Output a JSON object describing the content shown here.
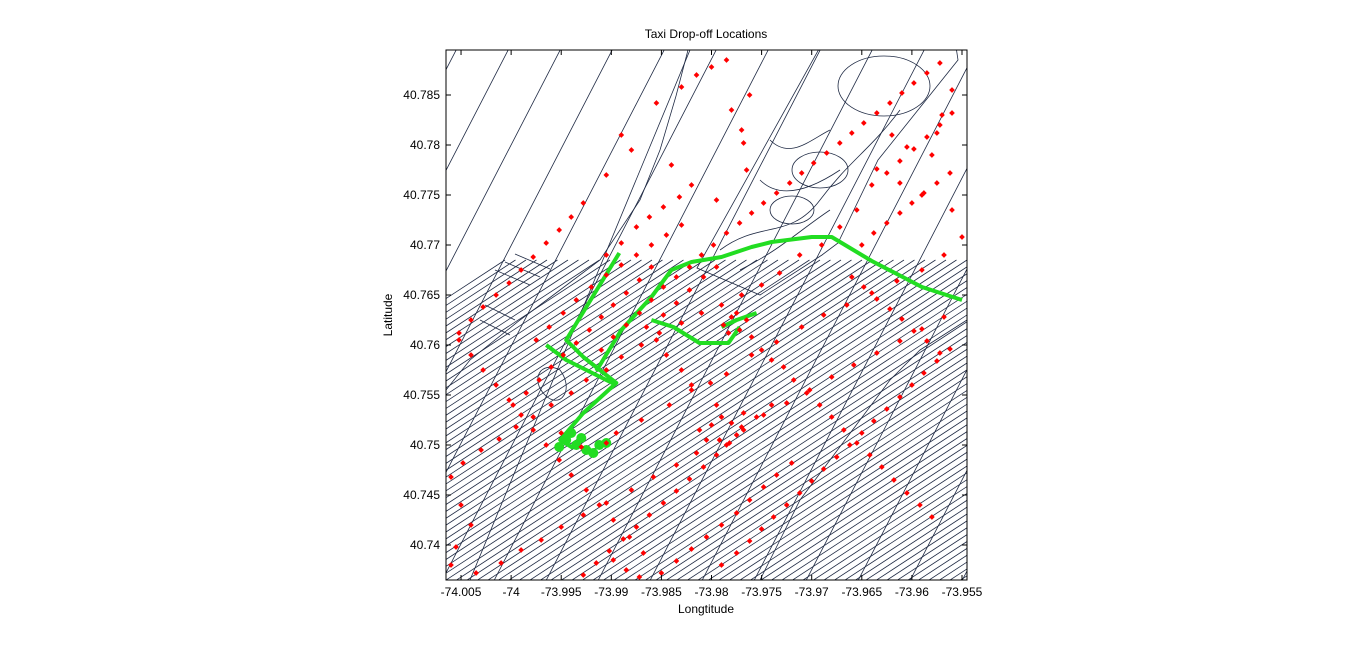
{
  "chart_data": {
    "type": "scatter",
    "title": "Taxi Drop-off Locations",
    "xlabel": "Longtitude",
    "ylabel": "Latitude",
    "xlim": [
      -74.0065,
      -73.9545
    ],
    "ylim": [
      40.7365,
      40.7895
    ],
    "xticks": [
      -74.005,
      -74,
      -73.995,
      -73.99,
      -73.985,
      -73.98,
      -73.975,
      -73.97,
      -73.965,
      -73.96,
      -73.955
    ],
    "xtick_labels": [
      "-74.005",
      "-74",
      "-73.995",
      "-73.99",
      "-73.985",
      "-73.98",
      "-73.975",
      "-73.97",
      "-73.965",
      "-73.96",
      "-73.955"
    ],
    "yticks": [
      40.74,
      40.745,
      40.75,
      40.755,
      40.76,
      40.765,
      40.77,
      40.775,
      40.78,
      40.785
    ],
    "ytick_labels": [
      "40.74",
      "40.745",
      "40.75",
      "40.755",
      "40.76",
      "40.765",
      "40.77",
      "40.775",
      "40.78",
      "40.785"
    ],
    "grid": false,
    "colors": {
      "streets": "#1f2a44",
      "points": "#ff0000",
      "route": "#22dd22"
    },
    "route_series": [
      [
        [
          -73.9892,
          40.7692
        ],
        [
          -73.9945,
          40.7605
        ],
        [
          -73.9928,
          40.7588
        ],
        [
          -73.9895,
          40.7562
        ],
        [
          -73.9928,
          40.7532
        ],
        [
          -73.9951,
          40.7505
        ],
        [
          -73.9938,
          40.7497
        ]
      ],
      [
        [
          -73.9965,
          40.76
        ],
        [
          -73.9945,
          40.7585
        ],
        [
          -73.9915,
          40.757
        ],
        [
          -73.9895,
          40.756
        ]
      ],
      [
        [
          -73.9915,
          40.7574
        ],
        [
          -73.989,
          40.7615
        ],
        [
          -73.986,
          40.7648
        ],
        [
          -73.984,
          40.7675
        ],
        [
          -73.982,
          40.7683
        ],
        [
          -73.979,
          40.7688
        ],
        [
          -73.976,
          40.7698
        ],
        [
          -73.974,
          40.7703
        ],
        [
          -73.97,
          40.7708
        ],
        [
          -73.968,
          40.7708
        ],
        [
          -73.964,
          40.7684
        ],
        [
          -73.959,
          40.7658
        ],
        [
          -73.955,
          40.7645
        ]
      ],
      [
        [
          -73.986,
          40.7625
        ],
        [
          -73.9838,
          40.7618
        ],
        [
          -73.9812,
          40.7602
        ],
        [
          -73.9783,
          40.7602
        ],
        [
          -73.9772,
          40.7618
        ]
      ],
      [
        [
          -73.9755,
          40.7632
        ],
        [
          -73.9775,
          40.7625
        ],
        [
          -73.979,
          40.7618
        ]
      ]
    ],
    "route_clusters": [
      [
        -73.9945,
        40.7505
      ],
      [
        -73.9935,
        40.75
      ],
      [
        -73.9952,
        40.7498
      ],
      [
        -73.9925,
        40.7495
      ],
      [
        -73.9912,
        40.75
      ],
      [
        -73.9905,
        40.7502
      ],
      [
        -73.9918,
        40.7492
      ],
      [
        -73.993,
        40.7507
      ],
      [
        -73.994,
        40.7512
      ]
    ],
    "dropoffs": [
      [
        -73.995,
        40.7512
      ],
      [
        -73.993,
        40.7498
      ],
      [
        -73.9905,
        40.7502
      ],
      [
        -73.9895,
        40.7512
      ],
      [
        -73.987,
        40.7525
      ],
      [
        -73.9842,
        40.754
      ],
      [
        -73.982,
        40.7555
      ],
      [
        -73.9801,
        40.7562
      ],
      [
        -73.9785,
        40.7571
      ],
      [
        -73.976,
        40.759
      ],
      [
        -73.9735,
        40.7603
      ],
      [
        -73.971,
        40.7618
      ],
      [
        -73.9688,
        40.763
      ],
      [
        -73.9665,
        40.764
      ],
      [
        -73.964,
        40.7652
      ],
      [
        -73.9615,
        40.7664
      ],
      [
        -73.959,
        40.7675
      ],
      [
        -73.9568,
        40.769
      ],
      [
        -73.955,
        40.7708
      ],
      [
        -73.956,
        40.7735
      ],
      [
        -73.959,
        40.775
      ],
      [
        -73.9612,
        40.7762
      ],
      [
        -73.9635,
        40.7776
      ],
      [
        -73.958,
        40.779
      ],
      [
        -73.9575,
        40.7812
      ],
      [
        -73.957,
        40.783
      ],
      [
        -73.956,
        40.7855
      ],
      [
        -73.962,
        40.781
      ],
      [
        -73.9605,
        40.7798
      ],
      [
        -73.9655,
        40.7735
      ],
      [
        -73.9672,
        40.7718
      ],
      [
        -73.969,
        40.77
      ],
      [
        -73.9712,
        40.769
      ],
      [
        -73.9732,
        40.7672
      ],
      [
        -73.975,
        40.766
      ],
      [
        -73.977,
        40.765
      ],
      [
        -73.979,
        40.764
      ],
      [
        -73.981,
        40.7632
      ],
      [
        -73.983,
        40.7622
      ],
      [
        -73.9852,
        40.7612
      ],
      [
        -73.987,
        40.76
      ],
      [
        -73.989,
        40.7588
      ],
      [
        -73.9905,
        40.7575
      ],
      [
        -73.9925,
        40.7565
      ],
      [
        -73.994,
        40.7552
      ],
      [
        -73.996,
        40.754
      ],
      [
        -73.9978,
        40.7528
      ],
      [
        -73.9995,
        40.7518
      ],
      [
        -74.0012,
        40.7506
      ],
      [
        -74.003,
        40.7495
      ],
      [
        -74.0048,
        40.7482
      ],
      [
        -74.006,
        40.7468
      ],
      [
        -74.005,
        40.744
      ],
      [
        -74.004,
        40.742
      ],
      [
        -74.0055,
        40.7398
      ],
      [
        -74.006,
        40.738
      ],
      [
        -74.0035,
        40.7372
      ],
      [
        -74.001,
        40.7382
      ],
      [
        -73.999,
        40.7395
      ],
      [
        -73.997,
        40.7405
      ],
      [
        -73.995,
        40.7418
      ],
      [
        -73.9928,
        40.743
      ],
      [
        -73.9905,
        40.7442
      ],
      [
        -73.988,
        40.7455
      ],
      [
        -73.9858,
        40.7468
      ],
      [
        -73.9835,
        40.748
      ],
      [
        -73.9815,
        40.7492
      ],
      [
        -73.9792,
        40.7505
      ],
      [
        -73.977,
        40.7518
      ],
      [
        -73.9748,
        40.753
      ],
      [
        -73.9725,
        40.7542
      ],
      [
        -73.9702,
        40.7555
      ],
      [
        -73.968,
        40.7568
      ],
      [
        -73.9658,
        40.758
      ],
      [
        -73.9635,
        40.7592
      ],
      [
        -73.9612,
        40.7604
      ],
      [
        -73.959,
        40.7616
      ],
      [
        -73.9568,
        40.7628
      ],
      [
        -73.98,
        40.752
      ],
      [
        -73.979,
        40.7528
      ],
      [
        -73.978,
        40.7522
      ],
      [
        -73.9812,
        40.7515
      ],
      [
        -73.9775,
        40.751
      ],
      [
        -73.9768,
        40.7532
      ],
      [
        -73.9795,
        40.754
      ],
      [
        -73.9805,
        40.7505
      ],
      [
        -73.9785,
        40.75
      ],
      [
        -73.982,
        40.756
      ],
      [
        -73.983,
        40.7575
      ],
      [
        -73.9845,
        40.759
      ],
      [
        -73.9855,
        40.7605
      ],
      [
        -73.9865,
        40.7618
      ],
      [
        -73.9848,
        40.763
      ],
      [
        -73.9835,
        40.7642
      ],
      [
        -73.9822,
        40.7655
      ],
      [
        -73.9808,
        40.7668
      ],
      [
        -73.9795,
        40.7678
      ],
      [
        -73.9788,
        40.762
      ],
      [
        -73.978,
        40.7628
      ],
      [
        -73.9772,
        40.7615
      ],
      [
        -73.9765,
        40.7625
      ],
      [
        -73.9775,
        40.7632
      ],
      [
        -73.9783,
        40.7612
      ],
      [
        -73.976,
        40.7608
      ],
      [
        -73.975,
        40.7595
      ],
      [
        -73.974,
        40.7585
      ],
      [
        -73.9728,
        40.7578
      ],
      [
        -73.9718,
        40.7565
      ],
      [
        -73.9705,
        40.7552
      ],
      [
        -73.9692,
        40.754
      ],
      [
        -73.968,
        40.7528
      ],
      [
        -73.9668,
        40.7515
      ],
      [
        -73.9655,
        40.7502
      ],
      [
        -73.9642,
        40.749
      ],
      [
        -73.963,
        40.7478
      ],
      [
        -73.9618,
        40.7465
      ],
      [
        -73.9605,
        40.7452
      ],
      [
        -73.9592,
        40.744
      ],
      [
        -73.958,
        40.7428
      ],
      [
        -73.972,
        40.7482
      ],
      [
        -73.9735,
        40.747
      ],
      [
        -73.9748,
        40.7458
      ],
      [
        -73.9762,
        40.7445
      ],
      [
        -73.9775,
        40.7432
      ],
      [
        -73.979,
        40.742
      ],
      [
        -73.9805,
        40.7408
      ],
      [
        -73.982,
        40.7396
      ],
      [
        -73.9835,
        40.7384
      ],
      [
        -73.985,
        40.7372
      ],
      [
        -73.9868,
        40.7392
      ],
      [
        -73.9882,
        40.7408
      ],
      [
        -73.9898,
        40.7425
      ],
      [
        -73.9912,
        40.744
      ],
      [
        -73.9925,
        40.7455
      ],
      [
        -73.994,
        40.747
      ],
      [
        -73.9952,
        40.7485
      ],
      [
        -73.9965,
        40.75
      ],
      [
        -73.9978,
        40.7515
      ],
      [
        -73.999,
        40.753
      ],
      [
        -74.0002,
        40.7545
      ],
      [
        -74.0015,
        40.756
      ],
      [
        -74.0028,
        40.7575
      ],
      [
        -74.004,
        40.759
      ],
      [
        -74.0052,
        40.7605
      ],
      [
        -73.9975,
        40.7605
      ],
      [
        -73.9962,
        40.7618
      ],
      [
        -73.9948,
        40.7632
      ],
      [
        -73.9935,
        40.7645
      ],
      [
        -73.992,
        40.7658
      ],
      [
        -73.9905,
        40.767
      ],
      [
        -73.989,
        40.768
      ],
      [
        -73.9875,
        40.769
      ],
      [
        -73.986,
        40.77
      ],
      [
        -73.9845,
        40.771
      ],
      [
        -73.983,
        40.772
      ],
      [
        -73.986,
        40.7678
      ],
      [
        -73.9872,
        40.7665
      ],
      [
        -73.9885,
        40.7652
      ],
      [
        -73.9898,
        40.764
      ],
      [
        -73.991,
        40.7628
      ],
      [
        -73.9922,
        40.7615
      ],
      [
        -73.9935,
        40.7602
      ],
      [
        -73.9948,
        40.759
      ],
      [
        -73.996,
        40.7578
      ],
      [
        -73.9972,
        40.7565
      ],
      [
        -73.9985,
        40.7552
      ],
      [
        -73.9998,
        40.754
      ],
      [
        -73.991,
        40.7595
      ],
      [
        -73.9898,
        40.7608
      ],
      [
        -73.9885,
        40.762
      ],
      [
        -73.9872,
        40.7632
      ],
      [
        -73.986,
        40.7645
      ],
      [
        -73.9848,
        40.7658
      ],
      [
        -73.9835,
        40.7668
      ],
      [
        -73.9822,
        40.7678
      ],
      [
        -73.981,
        40.769
      ],
      [
        -73.9798,
        40.77
      ],
      [
        -73.9785,
        40.7712
      ],
      [
        -73.9772,
        40.7722
      ],
      [
        -73.976,
        40.7732
      ],
      [
        -73.9748,
        40.7742
      ],
      [
        -73.9735,
        40.7752
      ],
      [
        -73.9722,
        40.7762
      ],
      [
        -73.971,
        40.7772
      ],
      [
        -73.9698,
        40.7782
      ],
      [
        -73.9685,
        40.7792
      ],
      [
        -73.9672,
        40.7802
      ],
      [
        -73.966,
        40.7812
      ],
      [
        -73.9648,
        40.7822
      ],
      [
        -73.9635,
        40.7832
      ],
      [
        -73.9622,
        40.7842
      ],
      [
        -73.961,
        40.7852
      ],
      [
        -73.9598,
        40.7862
      ],
      [
        -73.9585,
        40.7872
      ],
      [
        -73.9572,
        40.7882
      ],
      [
        -73.989,
        40.781
      ],
      [
        -73.988,
        40.7795
      ],
      [
        -73.9905,
        40.777
      ],
      [
        -73.9855,
        40.7842
      ],
      [
        -73.983,
        40.7858
      ],
      [
        -73.9815,
        40.787
      ],
      [
        -73.98,
        40.7878
      ],
      [
        -73.9785,
        40.7885
      ],
      [
        -73.984,
        40.778
      ],
      [
        -73.982,
        40.776
      ],
      [
        -73.9795,
        40.7745
      ],
      [
        -73.9765,
        40.7775
      ],
      [
        -73.9768,
        40.7802
      ],
      [
        -73.977,
        40.7815
      ],
      [
        -73.978,
        40.7835
      ],
      [
        -73.9762,
        40.785
      ],
      [
        -73.9928,
        40.7742
      ],
      [
        -73.994,
        40.7728
      ],
      [
        -73.9952,
        40.7715
      ],
      [
        -73.9965,
        40.7702
      ],
      [
        -73.9978,
        40.7688
      ],
      [
        -73.999,
        40.7675
      ],
      [
        -74.0002,
        40.7662
      ],
      [
        -74.0015,
        40.765
      ],
      [
        -74.0028,
        40.7638
      ],
      [
        -74.004,
        40.7625
      ],
      [
        -74.0052,
        40.7612
      ],
      [
        -73.9905,
        40.769
      ],
      [
        -73.989,
        40.7702
      ],
      [
        -73.9875,
        40.7718
      ],
      [
        -73.9862,
        40.7728
      ],
      [
        -73.9848,
        40.7738
      ],
      [
        -73.9832,
        40.7748
      ],
      [
        -73.964,
        40.776
      ],
      [
        -73.9625,
        40.7772
      ],
      [
        -73.9612,
        40.7784
      ],
      [
        -73.9598,
        40.7796
      ],
      [
        -73.9585,
        40.7808
      ],
      [
        -73.9572,
        40.782
      ],
      [
        -73.956,
        40.7832
      ],
      [
        -73.965,
        40.77
      ],
      [
        -73.9638,
        40.7712
      ],
      [
        -73.9625,
        40.7722
      ],
      [
        -73.9612,
        40.7732
      ],
      [
        -73.96,
        40.7742
      ],
      [
        -73.9588,
        40.7752
      ],
      [
        -73.9575,
        40.7762
      ],
      [
        -73.9562,
        40.7772
      ],
      [
        -73.966,
        40.7668
      ],
      [
        -73.9648,
        40.7658
      ],
      [
        -73.9635,
        40.7646
      ],
      [
        -73.9622,
        40.7636
      ],
      [
        -73.961,
        40.7626
      ],
      [
        -73.9598,
        40.7614
      ],
      [
        -73.9585,
        40.7604
      ],
      [
        -73.9572,
        40.7592
      ],
      [
        -73.974,
        40.754
      ],
      [
        -73.9755,
        40.7528
      ],
      [
        -73.9768,
        40.7515
      ],
      [
        -73.9782,
        40.7502
      ],
      [
        -73.9795,
        40.749
      ],
      [
        -73.9808,
        40.7478
      ],
      [
        -73.9822,
        40.7466
      ],
      [
        -73.9835,
        40.7454
      ],
      [
        -73.9848,
        40.7442
      ],
      [
        -73.9862,
        40.743
      ],
      [
        -73.9875,
        40.7418
      ],
      [
        -73.9888,
        40.7406
      ],
      [
        -73.9902,
        40.7394
      ],
      [
        -73.9915,
        40.7382
      ],
      [
        -73.9928,
        40.737
      ],
      [
        -73.9898,
        40.7385
      ],
      [
        -73.9885,
        40.7375
      ],
      [
        -73.9872,
        40.7368
      ],
      [
        -73.979,
        40.738
      ],
      [
        -73.9775,
        40.7392
      ],
      [
        -73.9762,
        40.7404
      ],
      [
        -73.975,
        40.7416
      ],
      [
        -73.9738,
        40.7428
      ],
      [
        -73.9725,
        40.744
      ],
      [
        -73.9712,
        40.7452
      ],
      [
        -73.97,
        40.7464
      ],
      [
        -73.9688,
        40.7476
      ],
      [
        -73.9675,
        40.7488
      ],
      [
        -73.9662,
        40.75
      ],
      [
        -73.965,
        40.7512
      ],
      [
        -73.9638,
        40.7524
      ],
      [
        -73.9625,
        40.7536
      ],
      [
        -73.9612,
        40.7548
      ],
      [
        -73.96,
        40.756
      ],
      [
        -73.9588,
        40.7572
      ],
      [
        -73.9575,
        40.7584
      ],
      [
        -73.9562,
        40.7596
      ]
    ]
  }
}
